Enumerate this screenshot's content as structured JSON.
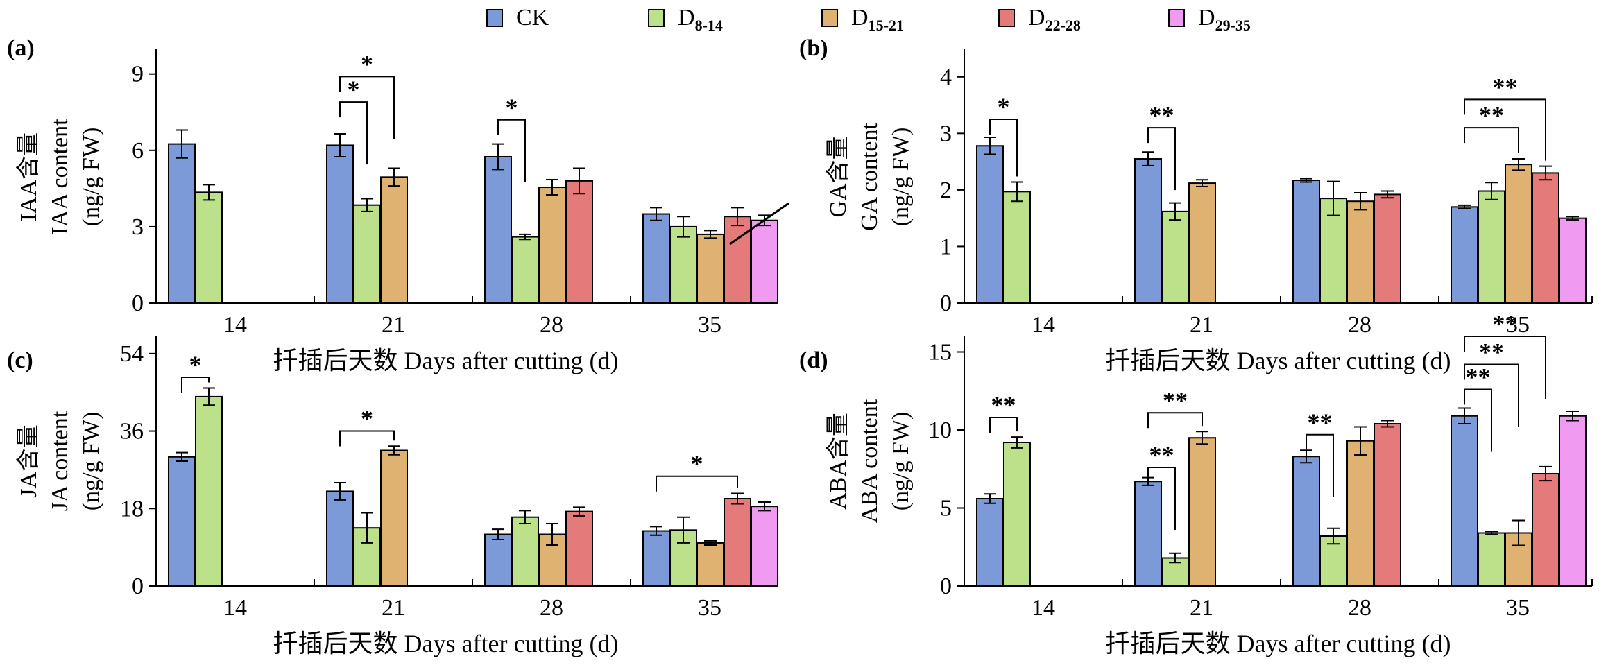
{
  "legend": [
    {
      "label": "CK",
      "sub": "",
      "color": "#7c9ad8"
    },
    {
      "label": "D",
      "sub": "8-14",
      "color": "#bde08a"
    },
    {
      "label": "D",
      "sub": "15-21",
      "color": "#e0b272"
    },
    {
      "label": "D",
      "sub": "22-28",
      "color": "#e47a7a"
    },
    {
      "label": "D",
      "sub": "29-35",
      "color": "#f09af2"
    }
  ],
  "chart_data": [
    {
      "id": "a",
      "panel_label": "(a)",
      "type": "bar",
      "ylabel_cn": "IAA含量",
      "ylabel_en": "IAA content",
      "ylabel_unit": "(ng/g FW)",
      "xlabel": "扦插后天数 Days after cutting (d)",
      "categories": [
        "14",
        "21",
        "28",
        "35"
      ],
      "ylim": [
        0,
        10
      ],
      "yticks": [
        0,
        3,
        6,
        9
      ],
      "series": [
        {
          "values": [
            6.25,
            6.2,
            5.75,
            3.5
          ],
          "errors": [
            0.55,
            0.45,
            0.5,
            0.25
          ]
        },
        {
          "values": [
            4.35,
            3.85,
            2.6,
            3.0
          ],
          "errors": [
            0.3,
            0.25,
            0.1,
            0.4
          ]
        },
        {
          "values": [
            null,
            4.95,
            4.55,
            2.7
          ],
          "errors": [
            null,
            0.35,
            0.3,
            0.15
          ]
        },
        {
          "values": [
            null,
            null,
            4.8,
            3.4
          ],
          "errors": [
            null,
            null,
            0.5,
            0.35
          ]
        },
        {
          "values": [
            null,
            null,
            null,
            3.25
          ],
          "errors": [
            null,
            null,
            null,
            0.2
          ]
        }
      ],
      "significance": [
        {
          "cat": 1,
          "from": 0,
          "to": 1,
          "label": "*",
          "y": 7.9
        },
        {
          "cat": 1,
          "from": 0,
          "to": 2,
          "label": "*",
          "y": 8.9
        },
        {
          "cat": 2,
          "from": 0,
          "to": 1,
          "label": "*",
          "y": 7.2
        }
      ],
      "annotation_line": true
    },
    {
      "id": "b",
      "panel_label": "(b)",
      "type": "bar",
      "ylabel_cn": "GA含量",
      "ylabel_en": "GA content",
      "ylabel_unit": "(ng/g FW)",
      "xlabel": "扦插后天数 Days after cutting (d)",
      "categories": [
        "14",
        "21",
        "28",
        "35"
      ],
      "ylim": [
        0,
        4.5
      ],
      "yticks": [
        0,
        1,
        2,
        3,
        4
      ],
      "series": [
        {
          "values": [
            2.78,
            2.55,
            2.17,
            1.7
          ],
          "errors": [
            0.15,
            0.12,
            0.03,
            0.03
          ]
        },
        {
          "values": [
            1.97,
            1.62,
            1.85,
            1.98
          ],
          "errors": [
            0.17,
            0.15,
            0.3,
            0.15
          ]
        },
        {
          "values": [
            null,
            2.12,
            1.8,
            2.45
          ],
          "errors": [
            null,
            0.06,
            0.15,
            0.1
          ]
        },
        {
          "values": [
            null,
            null,
            1.92,
            2.3
          ],
          "errors": [
            null,
            null,
            0.06,
            0.12
          ]
        },
        {
          "values": [
            null,
            null,
            null,
            1.5
          ],
          "errors": [
            null,
            null,
            null,
            0.03
          ]
        }
      ],
      "significance": [
        {
          "cat": 0,
          "from": 0,
          "to": 1,
          "label": "*",
          "y": 3.25
        },
        {
          "cat": 1,
          "from": 0,
          "to": 1,
          "label": "**",
          "y": 3.1
        },
        {
          "cat": 3,
          "from": 0,
          "to": 2,
          "label": "**",
          "y": 3.1
        },
        {
          "cat": 3,
          "from": 0,
          "to": 3,
          "label": "**",
          "y": 3.6
        }
      ]
    },
    {
      "id": "c",
      "panel_label": "(c)",
      "type": "bar",
      "ylabel_cn": "JA含量",
      "ylabel_en": "JA content",
      "ylabel_unit": "(ng/g FW)",
      "xlabel": "扦插后天数 Days after cutting (d)",
      "categories": [
        "14",
        "21",
        "28",
        "35"
      ],
      "ylim": [
        0,
        58
      ],
      "yticks": [
        0,
        18,
        36,
        54
      ],
      "series": [
        {
          "values": [
            30.0,
            22.0,
            12.0,
            12.8
          ],
          "errors": [
            1.0,
            2.0,
            1.2,
            1.0
          ]
        },
        {
          "values": [
            44.0,
            13.5,
            16.0,
            13.0
          ],
          "errors": [
            2.0,
            3.5,
            1.5,
            3.0
          ]
        },
        {
          "values": [
            null,
            31.5,
            12.0,
            10.0
          ],
          "errors": [
            null,
            1.0,
            2.5,
            0.5
          ]
        },
        {
          "values": [
            null,
            null,
            17.3,
            20.3
          ],
          "errors": [
            null,
            null,
            1.0,
            1.2
          ]
        },
        {
          "values": [
            null,
            null,
            null,
            18.5
          ],
          "errors": [
            null,
            null,
            null,
            1.0
          ]
        }
      ],
      "significance": [
        {
          "cat": 0,
          "from": 0,
          "to": 1,
          "label": "*",
          "y": 48.5
        },
        {
          "cat": 1,
          "from": 0,
          "to": 2,
          "label": "*",
          "y": 36.0
        },
        {
          "cat": 3,
          "from": 0,
          "to": 3,
          "label": "*",
          "y": 25.5
        }
      ]
    },
    {
      "id": "d",
      "panel_label": "(d)",
      "type": "bar",
      "ylabel_cn": "ABA含量",
      "ylabel_en": "ABA content",
      "ylabel_unit": "(ng/g FW)",
      "xlabel": "扦插后天数 Days after cutting (d)",
      "categories": [
        "14",
        "21",
        "28",
        "35"
      ],
      "ylim": [
        0,
        16
      ],
      "yticks": [
        0,
        5,
        10,
        15
      ],
      "series": [
        {
          "values": [
            5.6,
            6.7,
            8.3,
            10.9
          ],
          "errors": [
            0.3,
            0.25,
            0.4,
            0.5
          ]
        },
        {
          "values": [
            9.2,
            1.8,
            3.2,
            3.4
          ],
          "errors": [
            0.35,
            0.3,
            0.5,
            0.1
          ]
        },
        {
          "values": [
            null,
            9.5,
            9.3,
            3.4
          ],
          "errors": [
            null,
            0.4,
            0.9,
            0.8
          ]
        },
        {
          "values": [
            null,
            null,
            10.4,
            7.2
          ],
          "errors": [
            null,
            null,
            0.2,
            0.45
          ]
        },
        {
          "values": [
            null,
            null,
            null,
            10.9
          ],
          "errors": [
            null,
            null,
            null,
            0.3
          ]
        }
      ],
      "significance": [
        {
          "cat": 0,
          "from": 0,
          "to": 1,
          "label": "**",
          "y": 10.8
        },
        {
          "cat": 1,
          "from": 0,
          "to": 1,
          "label": "**",
          "y": 7.6
        },
        {
          "cat": 1,
          "from": 0,
          "to": 2,
          "label": "**",
          "y": 11.1
        },
        {
          "cat": 2,
          "from": 0,
          "to": 1,
          "label": "**",
          "y": 9.7
        },
        {
          "cat": 3,
          "from": 0,
          "to": 1,
          "label": "**",
          "y": 12.6
        },
        {
          "cat": 3,
          "from": 0,
          "to": 2,
          "label": "**",
          "y": 14.2
        },
        {
          "cat": 3,
          "from": 0,
          "to": 3,
          "label": "**",
          "y": 16.0
        }
      ]
    }
  ]
}
